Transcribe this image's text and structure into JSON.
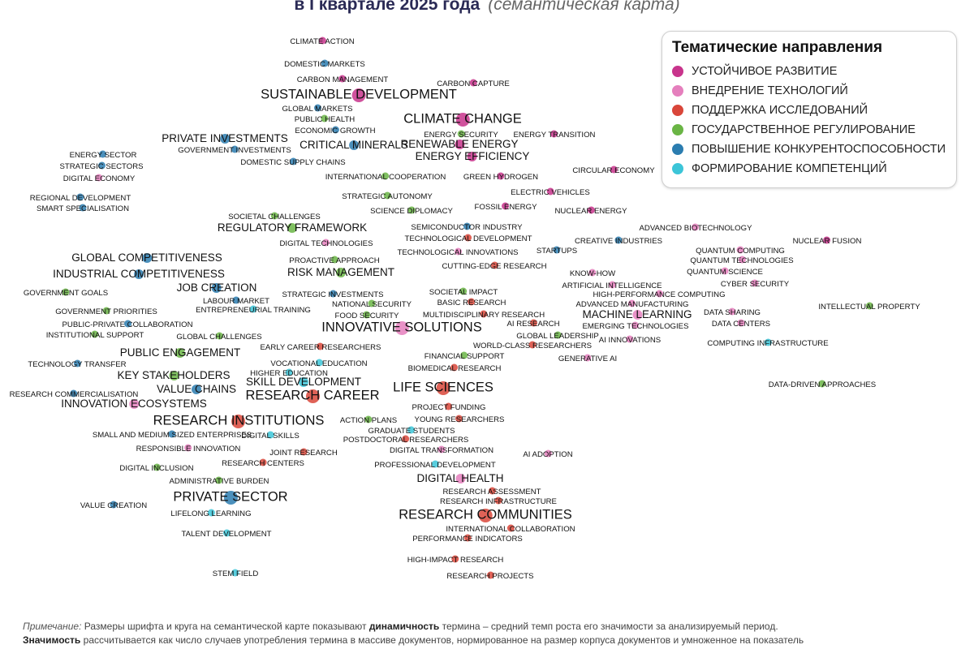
{
  "header": {
    "title_main": "в I квартале 2025 года",
    "title_italic": "(семантическая карта)"
  },
  "legend": {
    "title": "Тематические направления",
    "items": [
      {
        "key": "sustainable",
        "label": "УСТОЙЧИВОЕ РАЗВИТИЕ",
        "color": "#c8348c"
      },
      {
        "key": "tech",
        "label": "ВНЕДРЕНИЕ ТЕХНОЛОГИЙ",
        "color": "#e57fbd"
      },
      {
        "key": "research",
        "label": "ПОДДЕРЖКА ИССЛЕДОВАНИЙ",
        "color": "#d9463a"
      },
      {
        "key": "gov",
        "label": "ГОСУДАРСТВЕННОЕ РЕГУЛИРОВАНИЕ",
        "color": "#6ab545"
      },
      {
        "key": "compet",
        "label": "ПОВЫШЕНИЕ КОНКУРЕНТОСПОСОБНОСТИ",
        "color": "#2b7db0"
      },
      {
        "key": "skills",
        "label": "ФОРМИРОВАНИЕ КОМПЕТЕНЦИЙ",
        "color": "#3cc5d8"
      }
    ]
  },
  "note": {
    "prefix": "Примечание:",
    "line1_a": " Размеры шрифта и круга на семантической карте показывают ",
    "line1_b": "динамичность",
    "line1_c": " термина – средний темп роста его значимости за анализируемый период.",
    "line2_a": "Значимость",
    "line2_b": " рассчитывается как число случаев употребления термина в массиве документов, нормированное на размер корпуса документов и умноженное на показатель"
  },
  "terms": [
    {
      "label": "CLIMATE ACTION",
      "cat": "sustainable",
      "size": "s"
    },
    {
      "label": "DOMESTIC MARKETS",
      "cat": "compet",
      "size": "s"
    },
    {
      "label": "CARBON MANAGEMENT",
      "cat": "sustainable",
      "size": "s"
    },
    {
      "label": "CARBON CAPTURE",
      "cat": "sustainable",
      "size": "s"
    },
    {
      "label": "SUSTAINABLE DEVELOPMENT",
      "cat": "sustainable",
      "size": "l"
    },
    {
      "label": "GLOBAL MARKETS",
      "cat": "compet",
      "size": "s"
    },
    {
      "label": "PUBLIC HEALTH",
      "cat": "gov",
      "size": "s"
    },
    {
      "label": "CLIMATE CHANGE",
      "cat": "sustainable",
      "size": "l"
    },
    {
      "label": "ECONOMIC GROWTH",
      "cat": "compet",
      "size": "s"
    },
    {
      "label": "ENERGY SECURITY",
      "cat": "gov",
      "size": "s"
    },
    {
      "label": "ENERGY TRANSITION",
      "cat": "sustainable",
      "size": "s"
    },
    {
      "label": "PRIVATE INVESTMENTS",
      "cat": "compet",
      "size": "m"
    },
    {
      "label": "RENEWABLE ENERGY",
      "cat": "sustainable",
      "size": "m"
    },
    {
      "label": "CRITICAL MINERALS",
      "cat": "compet",
      "size": "m"
    },
    {
      "label": "GOVERNMENT INVESTMENTS",
      "cat": "compet",
      "size": "s"
    },
    {
      "label": "ENERGY EFFICIENCY",
      "cat": "sustainable",
      "size": "m"
    },
    {
      "label": "ENERGY SECTOR",
      "cat": "compet",
      "size": "s"
    },
    {
      "label": "DOMESTIC SUPPLY CHAINS",
      "cat": "compet",
      "size": "s"
    },
    {
      "label": "STRATEGIC SECTORS",
      "cat": "compet",
      "size": "s"
    },
    {
      "label": "CIRCULAR ECONOMY",
      "cat": "sustainable",
      "size": "s"
    },
    {
      "label": "DIGITAL ECONOMY",
      "cat": "tech",
      "size": "s"
    },
    {
      "label": "INTERNATIONAL COOPERATION",
      "cat": "gov",
      "size": "s"
    },
    {
      "label": "GREEN HYDROGEN",
      "cat": "sustainable",
      "size": "s"
    },
    {
      "label": "ELECTRIC VEHICLES",
      "cat": "sustainable",
      "size": "s"
    },
    {
      "label": "STRATEGIC AUTONOMY",
      "cat": "gov",
      "size": "s"
    },
    {
      "label": "REGIONAL DEVELOPMENT",
      "cat": "compet",
      "size": "s"
    },
    {
      "label": "SMART SPECIALISATION",
      "cat": "compet",
      "size": "s"
    },
    {
      "label": "SCIENCE DIPLOMACY",
      "cat": "gov",
      "size": "s"
    },
    {
      "label": "FOSSIL ENERGY",
      "cat": "sustainable",
      "size": "s"
    },
    {
      "label": "NUCLEAR ENERGY",
      "cat": "sustainable",
      "size": "s"
    },
    {
      "label": "SOCIETAL CHALLENGES",
      "cat": "gov",
      "size": "s"
    },
    {
      "label": "REGULATORY FRAMEWORK",
      "cat": "gov",
      "size": "m"
    },
    {
      "label": "SEMICONDUCTOR INDUSTRY",
      "cat": "compet",
      "size": "s"
    },
    {
      "label": "ADVANCED BIOTECHNOLOGY",
      "cat": "tech",
      "size": "s"
    },
    {
      "label": "TECHNOLOGICAL DEVELOPMENT",
      "cat": "research",
      "size": "s"
    },
    {
      "label": "DIGITAL TECHNOLOGIES",
      "cat": "tech",
      "size": "s"
    },
    {
      "label": "CREATIVE INDUSTRIES",
      "cat": "compet",
      "size": "s"
    },
    {
      "label": "NUCLEAR FUSION",
      "cat": "sustainable",
      "size": "s"
    },
    {
      "label": "TECHNOLOGICAL INNOVATIONS",
      "cat": "tech",
      "size": "s"
    },
    {
      "label": "STARTUPS",
      "cat": "compet",
      "size": "s"
    },
    {
      "label": "QUANTUM COMPUTING",
      "cat": "tech",
      "size": "s"
    },
    {
      "label": "GLOBAL COMPETITIVENESS",
      "cat": "compet",
      "size": "m"
    },
    {
      "label": "QUANTUM TECHNOLOGIES",
      "cat": "tech",
      "size": "s"
    },
    {
      "label": "PROACTIVE APPROACH",
      "cat": "gov",
      "size": "s"
    },
    {
      "label": "CUTTING-EDGE RESEARCH",
      "cat": "research",
      "size": "s"
    },
    {
      "label": "INDUSTRIAL COMPETITIVENESS",
      "cat": "compet",
      "size": "m"
    },
    {
      "label": "RISK MANAGEMENT",
      "cat": "gov",
      "size": "m"
    },
    {
      "label": "QUANTUM SCIENCE",
      "cat": "tech",
      "size": "s"
    },
    {
      "label": "KNOW-HOW",
      "cat": "tech",
      "size": "s"
    },
    {
      "label": "ARTIFICIAL INTELLIGENCE",
      "cat": "tech",
      "size": "s"
    },
    {
      "label": "CYBER SECURITY",
      "cat": "tech",
      "size": "s"
    },
    {
      "label": "JOB CREATION",
      "cat": "compet",
      "size": "m"
    },
    {
      "label": "SOCIETAL IMPACT",
      "cat": "gov",
      "size": "s"
    },
    {
      "label": "GOVERNMENT GOALS",
      "cat": "gov",
      "size": "s"
    },
    {
      "label": "STRATEGIC INVESTMENTS",
      "cat": "compet",
      "size": "s"
    },
    {
      "label": "HIGH-PERFORMANCE COMPUTING",
      "cat": "tech",
      "size": "s"
    },
    {
      "label": "LABOUR MARKET",
      "cat": "compet",
      "size": "s"
    },
    {
      "label": "BASIC RESEARCH",
      "cat": "research",
      "size": "s"
    },
    {
      "label": "NATIONAL SECURITY",
      "cat": "gov",
      "size": "s"
    },
    {
      "label": "ADVANCED MANUFACTURING",
      "cat": "tech",
      "size": "s"
    },
    {
      "label": "ENTREPRENEURIAL TRAINING",
      "cat": "skills",
      "size": "s"
    },
    {
      "label": "INTELLECTUAL PROPERTY",
      "cat": "gov",
      "size": "s"
    },
    {
      "label": "GOVERNMENT PRIORITIES",
      "cat": "gov",
      "size": "s"
    },
    {
      "label": "FOOD SECURITY",
      "cat": "gov",
      "size": "s"
    },
    {
      "label": "MULTIDISCIPLINARY RESEARCH",
      "cat": "research",
      "size": "s"
    },
    {
      "label": "MACHINE LEARNING",
      "cat": "tech",
      "size": "m"
    },
    {
      "label": "DATA SHARING",
      "cat": "tech",
      "size": "s"
    },
    {
      "label": "PUBLIC-PRIVATE COLLABORATION",
      "cat": "compet",
      "size": "s"
    },
    {
      "label": "AI RESEARCH",
      "cat": "research",
      "size": "s"
    },
    {
      "label": "DATA CENTERS",
      "cat": "tech",
      "size": "s"
    },
    {
      "label": "EMERGING TECHNOLOGIES",
      "cat": "tech",
      "size": "s"
    },
    {
      "label": "INNOVATIVE SOLUTIONS",
      "cat": "tech",
      "size": "l"
    },
    {
      "label": "INSTITUTIONAL SUPPORT",
      "cat": "gov",
      "size": "s"
    },
    {
      "label": "GLOBAL CHALLENGES",
      "cat": "gov",
      "size": "s"
    },
    {
      "label": "GLOBAL LEADERSHIP",
      "cat": "gov",
      "size": "s"
    },
    {
      "label": "AI INNOVATIONS",
      "cat": "tech",
      "size": "s"
    },
    {
      "label": "COMPUTING INFRASTRUCTURE",
      "cat": "skills",
      "size": "s"
    },
    {
      "label": "EARLY CAREER RESEARCHERS",
      "cat": "research",
      "size": "s"
    },
    {
      "label": "WORLD-CLASS RESEARCHERS",
      "cat": "research",
      "size": "s"
    },
    {
      "label": "PUBLIC ENGAGEMENT",
      "cat": "gov",
      "size": "m"
    },
    {
      "label": "FINANCIAL SUPPORT",
      "cat": "gov",
      "size": "s"
    },
    {
      "label": "VOCATIONAL EDUCATION",
      "cat": "skills",
      "size": "s"
    },
    {
      "label": "GENERATIVE AI",
      "cat": "tech",
      "size": "s"
    },
    {
      "label": "TECHNOLOGY TRANSFER",
      "cat": "compet",
      "size": "s"
    },
    {
      "label": "HIGHER EDUCATION",
      "cat": "skills",
      "size": "s"
    },
    {
      "label": "BIOMEDICAL RESEARCH",
      "cat": "research",
      "size": "s"
    },
    {
      "label": "KEY STAKEHOLDERS",
      "cat": "gov",
      "size": "m"
    },
    {
      "label": "SKILL DEVELOPMENT",
      "cat": "skills",
      "size": "m"
    },
    {
      "label": "DATA-DRIVEN APPROACHES",
      "cat": "gov",
      "size": "s"
    },
    {
      "label": "VALUE CHAINS",
      "cat": "compet",
      "size": "m"
    },
    {
      "label": "LIFE SCIENCES",
      "cat": "research",
      "size": "l"
    },
    {
      "label": "RESEARCH COMMERCIALISATION",
      "cat": "compet",
      "size": "s"
    },
    {
      "label": "RESEARCH CAREER",
      "cat": "research",
      "size": "l"
    },
    {
      "label": "INNOVATION ECOSYSTEMS",
      "cat": "tech",
      "size": "m"
    },
    {
      "label": "PROJECT FUNDING",
      "cat": "research",
      "size": "s"
    },
    {
      "label": "ACTION PLANS",
      "cat": "gov",
      "size": "s"
    },
    {
      "label": "YOUNG RESEARCHERS",
      "cat": "research",
      "size": "s"
    },
    {
      "label": "RESEARCH INSTITUTIONS",
      "cat": "research",
      "size": "l"
    },
    {
      "label": "GRADUATE STUDENTS",
      "cat": "skills",
      "size": "s"
    },
    {
      "label": "SMALL AND MEDIUM SIZED ENTERPRISES",
      "cat": "compet",
      "size": "s"
    },
    {
      "label": "DIGITAL SKILLS",
      "cat": "skills",
      "size": "s"
    },
    {
      "label": "POSTDOCTORAL RESEARCHERS",
      "cat": "research",
      "size": "s"
    },
    {
      "label": "RESPONSIBLE INNOVATION",
      "cat": "tech",
      "size": "s"
    },
    {
      "label": "JOINT RESEARCH",
      "cat": "research",
      "size": "s"
    },
    {
      "label": "DIGITAL TRANSFORMATION",
      "cat": "tech",
      "size": "s"
    },
    {
      "label": "AI ADOPTION",
      "cat": "tech",
      "size": "s"
    },
    {
      "label": "RESEARCH CENTERS",
      "cat": "research",
      "size": "s"
    },
    {
      "label": "PROFESSIONAL DEVELOPMENT",
      "cat": "skills",
      "size": "s"
    },
    {
      "label": "DIGITAL INCLUSION",
      "cat": "gov",
      "size": "s"
    },
    {
      "label": "DIGITAL HEALTH",
      "cat": "tech",
      "size": "m"
    },
    {
      "label": "ADMINISTRATIVE BURDEN",
      "cat": "gov",
      "size": "s"
    },
    {
      "label": "RESEARCH ASSESSMENT",
      "cat": "research",
      "size": "s"
    },
    {
      "label": "PRIVATE SECTOR",
      "cat": "compet",
      "size": "l"
    },
    {
      "label": "RESEARCH INFRASTRUCTURE",
      "cat": "research",
      "size": "s"
    },
    {
      "label": "VALUE CREATION",
      "cat": "compet",
      "size": "s"
    },
    {
      "label": "RESEARCH COMMUNITIES",
      "cat": "research",
      "size": "l"
    },
    {
      "label": "LIFELONG LEARNING",
      "cat": "skills",
      "size": "s"
    },
    {
      "label": "INTERNATIONAL COLLABORATION",
      "cat": "research",
      "size": "s"
    },
    {
      "label": "TALENT DEVELOPMENT",
      "cat": "skills",
      "size": "s"
    },
    {
      "label": "PERFORMANCE INDICATORS",
      "cat": "research",
      "size": "s"
    },
    {
      "label": "HIGH-IMPACT RESEARCH",
      "cat": "research",
      "size": "s"
    },
    {
      "label": "STEM FIELD",
      "cat": "skills",
      "size": "s"
    },
    {
      "label": "RESEARCH PROJECTS",
      "cat": "research",
      "size": "s"
    }
  ]
}
